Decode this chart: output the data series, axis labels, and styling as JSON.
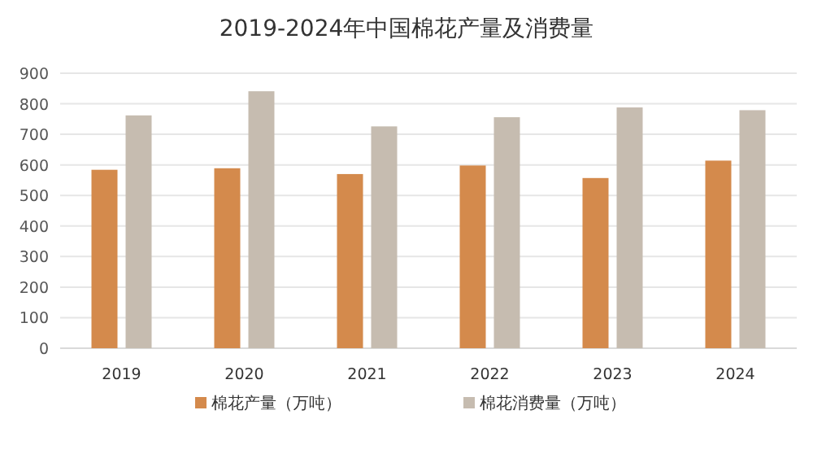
{
  "chart_data": {
    "type": "bar",
    "title": "2019-2024年中国棉花产量及消费量",
    "categories": [
      "2019",
      "2020",
      "2021",
      "2022",
      "2023",
      "2024"
    ],
    "series": [
      {
        "name": "棉花产量（万吨）",
        "color": "#d48a4c",
        "values": [
          584,
          589,
          570,
          598,
          557,
          614
        ]
      },
      {
        "name": "棉花消费量（万吨）",
        "color": "#c6bcb0",
        "values": [
          762,
          841,
          726,
          756,
          788,
          779
        ]
      }
    ],
    "ylim": [
      0,
      900
    ],
    "yticks": [
      0,
      100,
      200,
      300,
      400,
      500,
      600,
      700,
      800,
      900
    ],
    "grid": "y",
    "legend": "bottom"
  }
}
